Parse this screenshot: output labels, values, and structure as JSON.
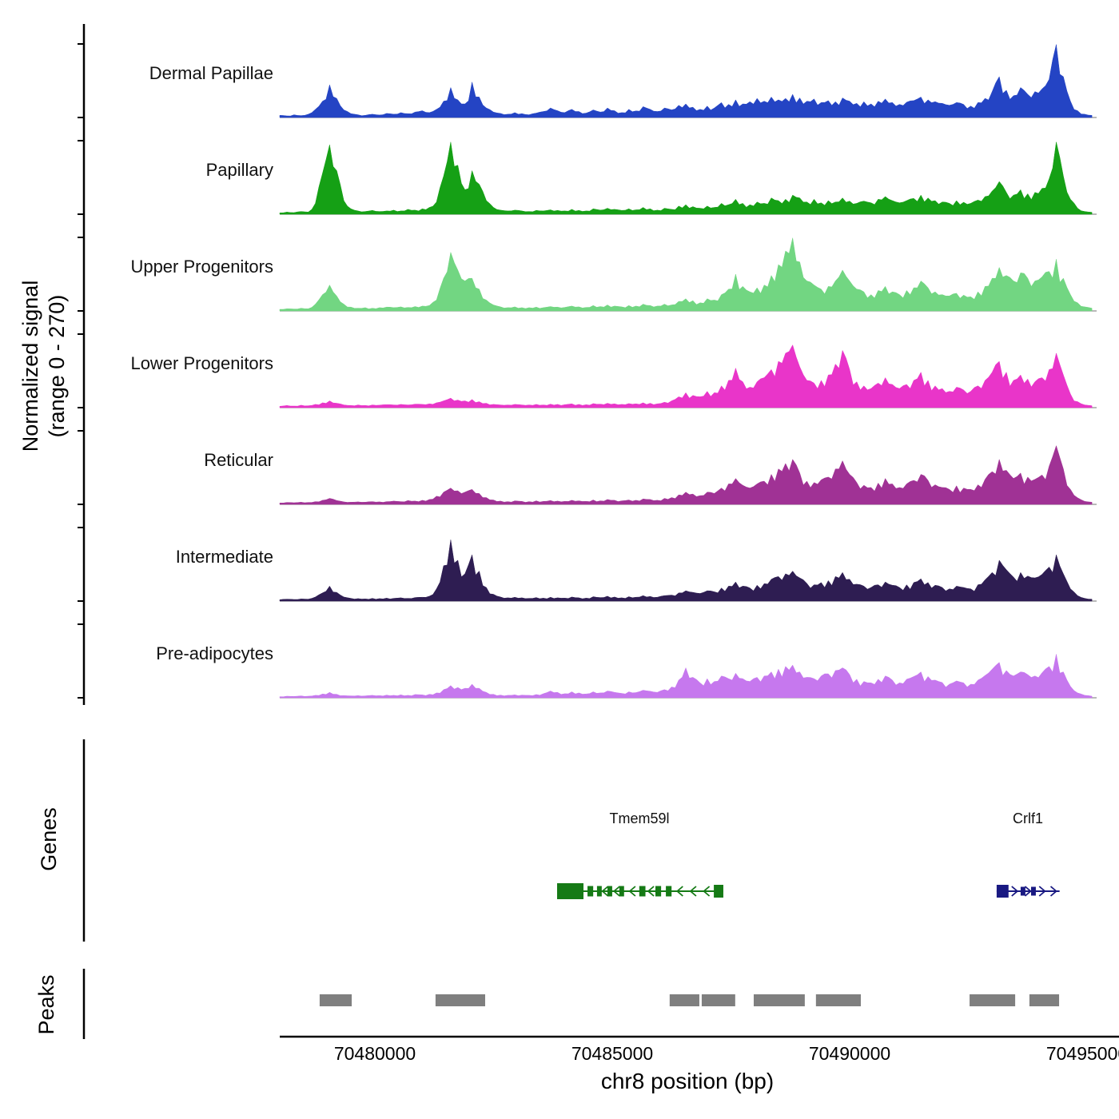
{
  "sections": {
    "genes": "Genes",
    "peaks": "Peaks"
  },
  "chart_data": {
    "type": "area",
    "title": "",
    "xlabel": "chr8 position (bp)",
    "ylabel_line1": "Normalized signal",
    "ylabel_line2": "(range 0 - 270)",
    "x_range": [
      70478000,
      70495200
    ],
    "y_range_per_track": [
      0,
      270
    ],
    "x_start": 70478000,
    "x_step": 150,
    "x_ticks": [
      {
        "value": 70480000,
        "label": "70480000"
      },
      {
        "value": 70485000,
        "label": "70485000"
      },
      {
        "value": 70490000,
        "label": "70490000"
      },
      {
        "value": 70495000,
        "label": "70495000"
      }
    ],
    "peaks_color": "#7f7f7f",
    "tracks": [
      {
        "name": "Dermal Papillae",
        "color": "#2444c4",
        "values": [
          8,
          6,
          10,
          7,
          12,
          30,
          60,
          120,
          70,
          28,
          14,
          10,
          8,
          12,
          9,
          15,
          12,
          18,
          14,
          20,
          25,
          18,
          30,
          60,
          110,
          65,
          50,
          130,
          75,
          35,
          20,
          15,
          12,
          18,
          14,
          10,
          16,
          22,
          35,
          25,
          18,
          30,
          22,
          16,
          28,
          20,
          35,
          25,
          18,
          30,
          24,
          40,
          30,
          22,
          35,
          28,
          45,
          50,
          38,
          30,
          42,
          35,
          55,
          48,
          65,
          50,
          58,
          70,
          60,
          75,
          65,
          70,
          85,
          72,
          60,
          68,
          55,
          62,
          58,
          72,
          60,
          52,
          58,
          50,
          60,
          68,
          55,
          48,
          56,
          62,
          75,
          65,
          58,
          52,
          45,
          55,
          48,
          42,
          55,
          70,
          95,
          150,
          100,
          80,
          110,
          85,
          95,
          105,
          140,
          268,
          150,
          60,
          25,
          12,
          8
        ]
      },
      {
        "name": "Papillary",
        "color": "#15a015",
        "values": [
          5,
          8,
          6,
          10,
          8,
          40,
          150,
          255,
          160,
          50,
          20,
          12,
          10,
          14,
          10,
          12,
          15,
          12,
          18,
          15,
          20,
          25,
          45,
          140,
          265,
          180,
          90,
          160,
          110,
          50,
          25,
          15,
          12,
          15,
          12,
          10,
          14,
          12,
          16,
          14,
          12,
          18,
          14,
          12,
          20,
          15,
          22,
          18,
          14,
          20,
          16,
          25,
          20,
          15,
          22,
          18,
          30,
          35,
          28,
          22,
          30,
          25,
          40,
          35,
          55,
          40,
          35,
          45,
          40,
          60,
          50,
          55,
          70,
          60,
          45,
          55,
          42,
          50,
          45,
          60,
          48,
          40,
          48,
          42,
          55,
          65,
          50,
          42,
          50,
          58,
          70,
          60,
          50,
          45,
          40,
          50,
          44,
          40,
          52,
          65,
          85,
          120,
          80,
          70,
          90,
          75,
          80,
          95,
          130,
          265,
          140,
          55,
          22,
          10,
          7
        ]
      },
      {
        "name": "Upper Progenitors",
        "color": "#72d682",
        "values": [
          6,
          8,
          7,
          10,
          8,
          25,
          60,
          95,
          55,
          25,
          14,
          10,
          12,
          10,
          12,
          14,
          12,
          15,
          13,
          16,
          18,
          20,
          40,
          120,
          215,
          150,
          110,
          120,
          80,
          40,
          22,
          15,
          12,
          15,
          12,
          12,
          14,
          12,
          16,
          14,
          13,
          18,
          15,
          13,
          20,
          16,
          22,
          18,
          15,
          20,
          18,
          25,
          20,
          18,
          25,
          22,
          35,
          45,
          38,
          30,
          45,
          40,
          60,
          80,
          135,
          90,
          70,
          85,
          95,
          130,
          170,
          220,
          268,
          180,
          110,
          95,
          80,
          90,
          110,
          150,
          110,
          80,
          70,
          60,
          75,
          90,
          70,
          60,
          75,
          85,
          110,
          85,
          70,
          60,
          55,
          65,
          58,
          52,
          70,
          90,
          120,
          160,
          130,
          110,
          140,
          120,
          110,
          125,
          145,
          190,
          120,
          60,
          30,
          15,
          10
        ]
      },
      {
        "name": "Lower Progenitors",
        "color": "#e935c9",
        "values": [
          5,
          8,
          6,
          9,
          7,
          12,
          18,
          25,
          16,
          10,
          8,
          10,
          8,
          10,
          9,
          11,
          10,
          12,
          10,
          13,
          12,
          14,
          18,
          25,
          35,
          28,
          25,
          30,
          22,
          16,
          12,
          10,
          10,
          12,
          10,
          10,
          12,
          10,
          13,
          12,
          11,
          14,
          12,
          11,
          15,
          13,
          16,
          14,
          12,
          15,
          14,
          18,
          16,
          14,
          20,
          25,
          40,
          55,
          45,
          40,
          60,
          55,
          80,
          100,
          145,
          95,
          75,
          95,
          110,
          140,
          170,
          200,
          230,
          150,
          100,
          90,
          100,
          120,
          160,
          210,
          140,
          95,
          80,
          70,
          90,
          110,
          85,
          70,
          85,
          100,
          130,
          100,
          80,
          70,
          60,
          75,
          65,
          60,
          80,
          100,
          130,
          170,
          130,
          100,
          120,
          105,
          95,
          110,
          140,
          200,
          120,
          50,
          22,
          10,
          7
        ]
      },
      {
        "name": "Reticular",
        "color": "#a03295",
        "values": [
          5,
          7,
          6,
          8,
          7,
          10,
          15,
          22,
          14,
          9,
          8,
          9,
          8,
          10,
          9,
          10,
          12,
          10,
          14,
          12,
          15,
          18,
          30,
          45,
          60,
          50,
          45,
          55,
          40,
          25,
          16,
          12,
          10,
          13,
          11,
          10,
          13,
          11,
          14,
          12,
          11,
          15,
          13,
          11,
          16,
          13,
          18,
          15,
          13,
          16,
          15,
          20,
          18,
          15,
          22,
          25,
          35,
          45,
          38,
          32,
          45,
          40,
          60,
          75,
          95,
          70,
          60,
          75,
          85,
          110,
          130,
          150,
          165,
          115,
          85,
          80,
          90,
          100,
          130,
          160,
          110,
          80,
          70,
          62,
          78,
          95,
          75,
          62,
          75,
          88,
          110,
          88,
          72,
          62,
          55,
          68,
          60,
          55,
          72,
          92,
          120,
          165,
          125,
          95,
          115,
          100,
          92,
          108,
          140,
          215,
          130,
          55,
          24,
          11,
          8
        ]
      },
      {
        "name": "Intermediate",
        "color": "#2e1d52",
        "values": [
          5,
          7,
          6,
          8,
          7,
          15,
          30,
          55,
          32,
          15,
          10,
          9,
          8,
          10,
          9,
          11,
          10,
          12,
          10,
          13,
          14,
          18,
          45,
          130,
          225,
          150,
          100,
          170,
          110,
          50,
          25,
          15,
          12,
          14,
          12,
          10,
          13,
          11,
          14,
          12,
          11,
          15,
          12,
          11,
          16,
          13,
          18,
          15,
          12,
          16,
          14,
          20,
          17,
          14,
          20,
          22,
          30,
          38,
          32,
          28,
          38,
          34,
          48,
          55,
          70,
          55,
          48,
          58,
          64,
          80,
          90,
          100,
          110,
          85,
          65,
          60,
          68,
          75,
          90,
          105,
          80,
          62,
          55,
          50,
          60,
          70,
          58,
          50,
          60,
          68,
          82,
          68,
          58,
          50,
          45,
          55,
          50,
          45,
          60,
          78,
          105,
          150,
          115,
          88,
          105,
          92,
          85,
          98,
          125,
          170,
          100,
          45,
          20,
          10,
          7
        ]
      },
      {
        "name": "Pre-adipocytes",
        "color": "#c678ee",
        "values": [
          4,
          6,
          5,
          7,
          6,
          9,
          14,
          20,
          13,
          8,
          7,
          8,
          7,
          9,
          8,
          10,
          9,
          11,
          9,
          12,
          11,
          13,
          18,
          30,
          45,
          38,
          35,
          50,
          35,
          20,
          13,
          10,
          9,
          11,
          10,
          9,
          12,
          15,
          25,
          20,
          15,
          22,
          18,
          14,
          22,
          18,
          25,
          20,
          16,
          22,
          19,
          28,
          24,
          20,
          30,
          40,
          65,
          110,
          75,
          55,
          70,
          60,
          80,
          70,
          90,
          70,
          60,
          75,
          80,
          95,
          105,
          115,
          120,
          95,
          75,
          70,
          80,
          88,
          100,
          110,
          85,
          68,
          60,
          55,
          68,
          80,
          65,
          55,
          68,
          78,
          95,
          78,
          65,
          56,
          50,
          62,
          55,
          50,
          65,
          82,
          105,
          130,
          100,
          80,
          95,
          85,
          80,
          92,
          115,
          160,
          95,
          42,
          18,
          9,
          6
        ]
      }
    ],
    "genes": [
      {
        "name": "Tmem59l",
        "color": "#157a15",
        "strand": "-",
        "start": 70483840,
        "end": 70487340,
        "exons": [
          [
            70483840,
            70484395,
            20
          ],
          [
            70484480,
            70484600,
            13
          ],
          [
            70484680,
            70484780,
            13
          ],
          [
            70484900,
            70485000,
            13
          ],
          [
            70485150,
            70485250,
            13
          ],
          [
            70485570,
            70485700,
            13
          ],
          [
            70485910,
            70486030,
            13
          ],
          [
            70486130,
            70486250,
            13
          ],
          [
            70487140,
            70487340,
            16
          ]
        ],
        "arrows": [
          70484845,
          70485090,
          70485420,
          70485810,
          70486420,
          70486700,
          70486980
        ],
        "label_x": 70485580
      },
      {
        "name": "Crlf1",
        "color": "#191982",
        "strand": "+",
        "start": 70493095,
        "end": 70494420,
        "exons": [
          [
            70493095,
            70493345,
            16
          ],
          [
            70493600,
            70493700,
            11
          ],
          [
            70493820,
            70493920,
            11
          ]
        ],
        "arrows": [
          70493480,
          70493760,
          70494060,
          70494300
        ],
        "label_x": 70493750
      }
    ],
    "peaks": [
      [
        70478840,
        70479515
      ],
      [
        70481280,
        70482325
      ],
      [
        70486210,
        70486835
      ],
      [
        70486885,
        70487590
      ],
      [
        70487980,
        70489055
      ],
      [
        70489290,
        70490235
      ],
      [
        70492525,
        70493485
      ],
      [
        70493785,
        70494410
      ]
    ]
  }
}
